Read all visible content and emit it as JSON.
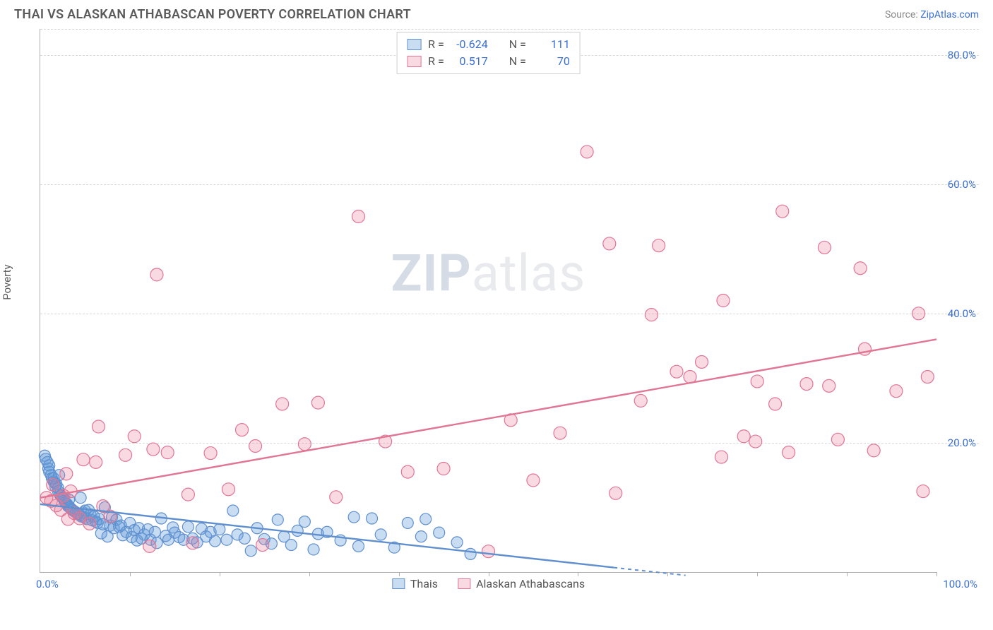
{
  "title": "THAI VS ALASKAN ATHABASCAN POVERTY CORRELATION CHART",
  "source_label": "Source:",
  "source_name": "ZipAtlas.com",
  "y_axis_label": "Poverty",
  "watermark": {
    "bold": "ZIP",
    "rest": "atlas"
  },
  "chart": {
    "type": "scatter",
    "xlim": [
      0,
      100
    ],
    "ylim": [
      0,
      84
    ],
    "y_ticks": [
      20,
      40,
      60,
      80
    ],
    "y_tick_labels": [
      "20.0%",
      "40.0%",
      "60.0%",
      "80.0%"
    ],
    "x_ticks": [
      10,
      20,
      30,
      40,
      50,
      60,
      70,
      80,
      90,
      100
    ],
    "x_min_label": "0.0%",
    "x_max_label": "100.0%",
    "grid_color": "#d8d8d8",
    "axis_color": "#b0b0b0",
    "background_color": "#ffffff"
  },
  "series": [
    {
      "name": "Thais",
      "fill": "rgba(96,155,219,0.35)",
      "stroke": "#5f8fce",
      "r_value": "-0.624",
      "n_value": "111",
      "trend": {
        "x1": 0,
        "y1": 10.5,
        "x2": 64,
        "y2": 0.7,
        "dash_x2": 72,
        "dash_y2": -0.5
      },
      "marker_r": 8,
      "points": [
        [
          0.5,
          18
        ],
        [
          0.6,
          17.5
        ],
        [
          0.8,
          17
        ],
        [
          0.9,
          16
        ],
        [
          1,
          16.5
        ],
        [
          1,
          15.5
        ],
        [
          1.2,
          15
        ],
        [
          1.3,
          14.5
        ],
        [
          1.5,
          14
        ],
        [
          1.5,
          14.5
        ],
        [
          1.6,
          13.8
        ],
        [
          1.7,
          13.2
        ],
        [
          1.8,
          13.6
        ],
        [
          2,
          13
        ],
        [
          2,
          12.5
        ],
        [
          2.1,
          15
        ],
        [
          2.2,
          12
        ],
        [
          2.3,
          11.8
        ],
        [
          2.5,
          11.5
        ],
        [
          2.6,
          11.4
        ],
        [
          2.7,
          11
        ],
        [
          2.8,
          10.8
        ],
        [
          3,
          10.5
        ],
        [
          3.1,
          10.2
        ],
        [
          3.2,
          11.2
        ],
        [
          3.3,
          10
        ],
        [
          3.4,
          9.8
        ],
        [
          3.6,
          9.6
        ],
        [
          3.8,
          9.4
        ],
        [
          4,
          9.2
        ],
        [
          4.2,
          9
        ],
        [
          4.4,
          8.8
        ],
        [
          4.5,
          11.5
        ],
        [
          4.6,
          8.6
        ],
        [
          4.8,
          9.2
        ],
        [
          5,
          9.5
        ],
        [
          5,
          8.4
        ],
        [
          5.2,
          8.2
        ],
        [
          5.4,
          9.6
        ],
        [
          5.6,
          8.9
        ],
        [
          5.8,
          8
        ],
        [
          6,
          8.6
        ],
        [
          6.2,
          7.8
        ],
        [
          6.4,
          7.6
        ],
        [
          6.6,
          8.2
        ],
        [
          6.8,
          6
        ],
        [
          7,
          7.4
        ],
        [
          7.2,
          10
        ],
        [
          7.5,
          5.5
        ],
        [
          7.8,
          7.2
        ],
        [
          8,
          8.5
        ],
        [
          8.2,
          6.8
        ],
        [
          8.5,
          8.1
        ],
        [
          8.8,
          7
        ],
        [
          9,
          7.2
        ],
        [
          9.2,
          5.7
        ],
        [
          9.6,
          6.2
        ],
        [
          10,
          7.6
        ],
        [
          10.2,
          5.4
        ],
        [
          10.5,
          6.5
        ],
        [
          10.8,
          4.9
        ],
        [
          11,
          6.8
        ],
        [
          11.3,
          5.2
        ],
        [
          11.6,
          5.8
        ],
        [
          12,
          6.6
        ],
        [
          12.3,
          5
        ],
        [
          12.8,
          6.2
        ],
        [
          13,
          4.5
        ],
        [
          13.5,
          8.3
        ],
        [
          14,
          5.6
        ],
        [
          14.3,
          5
        ],
        [
          14.8,
          6.9
        ],
        [
          15,
          6.1
        ],
        [
          15.5,
          5.4
        ],
        [
          16,
          5
        ],
        [
          16.5,
          7
        ],
        [
          17,
          5.2
        ],
        [
          17.5,
          4.6
        ],
        [
          18,
          6.7
        ],
        [
          18.5,
          5.5
        ],
        [
          19,
          6.2
        ],
        [
          19.5,
          4.8
        ],
        [
          20,
          6.6
        ],
        [
          20.8,
          5
        ],
        [
          21.5,
          9.5
        ],
        [
          22,
          5.8
        ],
        [
          22.8,
          5.2
        ],
        [
          23.5,
          3.3
        ],
        [
          24.2,
          6.8
        ],
        [
          25,
          5.1
        ],
        [
          25.8,
          4.4
        ],
        [
          26.5,
          8.1
        ],
        [
          27.2,
          5.5
        ],
        [
          28,
          4.2
        ],
        [
          28.7,
          6.4
        ],
        [
          29.5,
          7.8
        ],
        [
          30.5,
          3.5
        ],
        [
          31,
          5.9
        ],
        [
          32,
          6.2
        ],
        [
          33.5,
          4.9
        ],
        [
          35,
          8.5
        ],
        [
          35.5,
          4
        ],
        [
          37,
          8.3
        ],
        [
          38,
          5.8
        ],
        [
          39.5,
          3.8
        ],
        [
          41,
          7.6
        ],
        [
          42.5,
          5.5
        ],
        [
          43,
          8.2
        ],
        [
          44.5,
          6.1
        ],
        [
          46.5,
          4.6
        ],
        [
          48,
          2.8
        ]
      ]
    },
    {
      "name": "Alaskan Athabascans",
      "fill": "rgba(232,117,151,0.28)",
      "stroke": "#e07694",
      "r_value": "0.517",
      "n_value": "70",
      "trend": {
        "x1": 0,
        "y1": 11.5,
        "x2": 100,
        "y2": 36
      },
      "marker_r": 9,
      "points": [
        [
          0.7,
          11.5
        ],
        [
          1.2,
          11
        ],
        [
          1.4,
          13.5
        ],
        [
          1.8,
          10.3
        ],
        [
          2.3,
          9.6
        ],
        [
          2.6,
          11.8
        ],
        [
          2.9,
          15.2
        ],
        [
          3.1,
          8.2
        ],
        [
          3.4,
          12.5
        ],
        [
          3.8,
          9.1
        ],
        [
          4.4,
          8.3
        ],
        [
          4.8,
          17.4
        ],
        [
          5.5,
          7.5
        ],
        [
          6.2,
          17
        ],
        [
          6.5,
          22.5
        ],
        [
          7,
          10.2
        ],
        [
          7.8,
          8.6
        ],
        [
          9.5,
          18.1
        ],
        [
          10.5,
          21
        ],
        [
          12.2,
          4
        ],
        [
          12.6,
          19
        ],
        [
          13,
          46
        ],
        [
          14.2,
          18.5
        ],
        [
          16.5,
          12
        ],
        [
          17,
          4.5
        ],
        [
          19,
          18.4
        ],
        [
          21,
          12.8
        ],
        [
          22.5,
          22
        ],
        [
          24,
          19.5
        ],
        [
          24.8,
          4.2
        ],
        [
          27,
          26
        ],
        [
          29.5,
          19.8
        ],
        [
          31,
          26.2
        ],
        [
          33,
          11.6
        ],
        [
          35.5,
          55
        ],
        [
          38.5,
          20.2
        ],
        [
          41,
          15.5
        ],
        [
          45,
          16
        ],
        [
          50,
          3.2
        ],
        [
          52.5,
          23.5
        ],
        [
          55,
          14.2
        ],
        [
          58,
          21.5
        ],
        [
          61,
          65
        ],
        [
          63.5,
          50.8
        ],
        [
          64.2,
          12.2
        ],
        [
          67,
          26.5
        ],
        [
          68.2,
          39.8
        ],
        [
          69,
          50.5
        ],
        [
          71,
          31
        ],
        [
          72.5,
          30.2
        ],
        [
          73.8,
          32.5
        ],
        [
          76,
          17.8
        ],
        [
          76.2,
          42
        ],
        [
          78.5,
          21
        ],
        [
          79.8,
          20.2
        ],
        [
          80,
          29.5
        ],
        [
          82,
          26
        ],
        [
          82.8,
          55.8
        ],
        [
          83.5,
          18.5
        ],
        [
          85.5,
          29.1
        ],
        [
          87.5,
          50.2
        ],
        [
          88,
          28.8
        ],
        [
          89,
          20.5
        ],
        [
          91.5,
          47
        ],
        [
          92,
          34.5
        ],
        [
          93,
          18.8
        ],
        [
          95.5,
          28
        ],
        [
          98,
          40
        ],
        [
          98.5,
          12.5
        ],
        [
          99,
          30.2
        ]
      ]
    }
  ],
  "legend_top": {
    "r_label": "R =",
    "n_label": "N ="
  },
  "legend_bottom": [
    {
      "label": "Thais",
      "fill": "rgba(96,155,219,0.35)",
      "stroke": "#5f8fce"
    },
    {
      "label": "Alaskan Athabascans",
      "fill": "rgba(232,117,151,0.28)",
      "stroke": "#e07694"
    }
  ]
}
